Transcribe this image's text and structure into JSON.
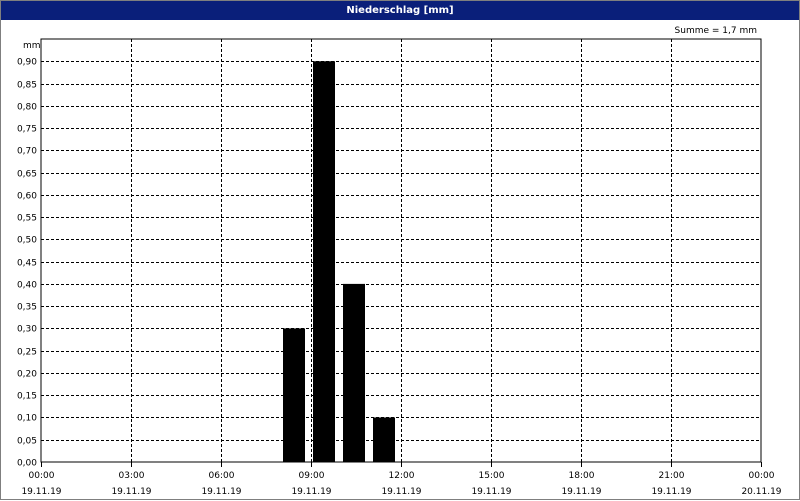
{
  "window": {
    "title": "Niederschlag [mm]"
  },
  "summary": {
    "text": "Summe = 1,7 mm"
  },
  "chart_data": {
    "type": "bar",
    "title": "Niederschlag [mm]",
    "ylabel": "mm",
    "ylim": [
      0,
      0.95
    ],
    "yticks": [
      "0,00",
      "0,05",
      "0,10",
      "0,15",
      "0,20",
      "0,25",
      "0,30",
      "0,35",
      "0,40",
      "0,45",
      "0,50",
      "0,55",
      "0,60",
      "0,65",
      "0,70",
      "0,75",
      "0,80",
      "0,85",
      "0,90"
    ],
    "xticks": [
      {
        "time": "00:00",
        "date": "19.11.19"
      },
      {
        "time": "03:00",
        "date": "19.11.19"
      },
      {
        "time": "06:00",
        "date": "19.11.19"
      },
      {
        "time": "09:00",
        "date": "19.11.19"
      },
      {
        "time": "12:00",
        "date": "19.11.19"
      },
      {
        "time": "15:00",
        "date": "19.11.19"
      },
      {
        "time": "18:00",
        "date": "19.11.19"
      },
      {
        "time": "21:00",
        "date": "19.11.19"
      },
      {
        "time": "00:00",
        "date": "20.11.19"
      }
    ],
    "bars": [
      {
        "hour": "08:00–09:00",
        "value": 0.3
      },
      {
        "hour": "09:00–10:00",
        "value": 0.9
      },
      {
        "hour": "10:00–11:00",
        "value": 0.4
      },
      {
        "hour": "11:00–12:00",
        "value": 0.1
      }
    ],
    "bar_color": "#000000",
    "grid": true
  }
}
